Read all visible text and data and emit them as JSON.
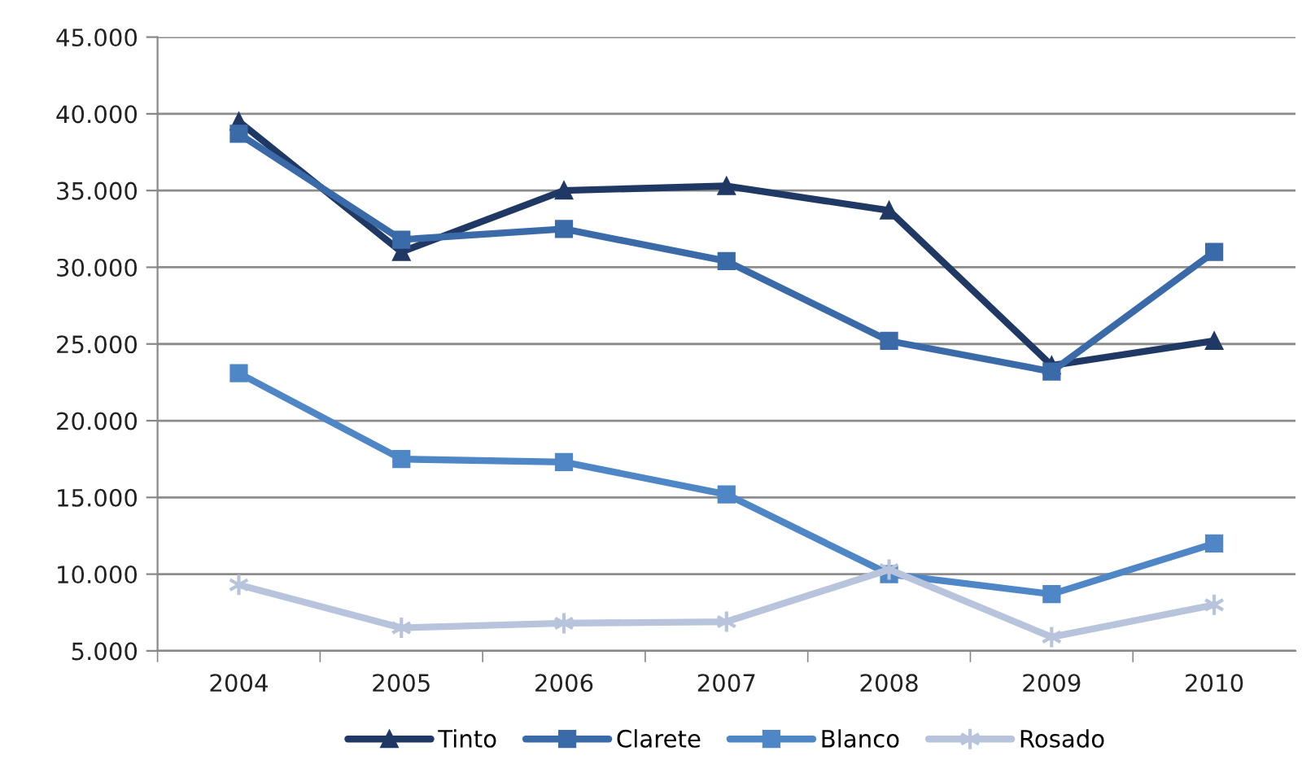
{
  "chart_data": {
    "type": "line",
    "categories": [
      "2004",
      "2005",
      "2006",
      "2007",
      "2008",
      "2009",
      "2010"
    ],
    "series": [
      {
        "name": "Tinto",
        "color": "#1f3864",
        "marker": "triangle",
        "values": [
          39500,
          31000,
          35000,
          35300,
          33700,
          23600,
          25200
        ]
      },
      {
        "name": "Clarete",
        "color": "#3a6aa8",
        "marker": "square",
        "values": [
          38700,
          31800,
          32500,
          30400,
          25200,
          23200,
          31000
        ]
      },
      {
        "name": "Blanco",
        "color": "#4f86c6",
        "marker": "square",
        "values": [
          23100,
          17500,
          17300,
          15200,
          10000,
          8700,
          12000
        ]
      },
      {
        "name": "Rosado",
        "color": "#b8c3dc",
        "marker": "cross",
        "values": [
          9300,
          6500,
          6800,
          6900,
          10300,
          5900,
          8000
        ]
      }
    ],
    "ylim": [
      5000,
      45000
    ],
    "yticks": [
      {
        "value": 5000,
        "label": "5.000"
      },
      {
        "value": 10000,
        "label": "10.000"
      },
      {
        "value": 15000,
        "label": "15.000"
      },
      {
        "value": 20000,
        "label": "20.000"
      },
      {
        "value": 25000,
        "label": "25.000"
      },
      {
        "value": 30000,
        "label": "30.000"
      },
      {
        "value": 35000,
        "label": "35.000"
      },
      {
        "value": 40000,
        "label": "40.000"
      },
      {
        "value": 45000,
        "label": "45.000"
      }
    ],
    "grid": "y",
    "legend": "bottom",
    "line_style": "solid"
  }
}
